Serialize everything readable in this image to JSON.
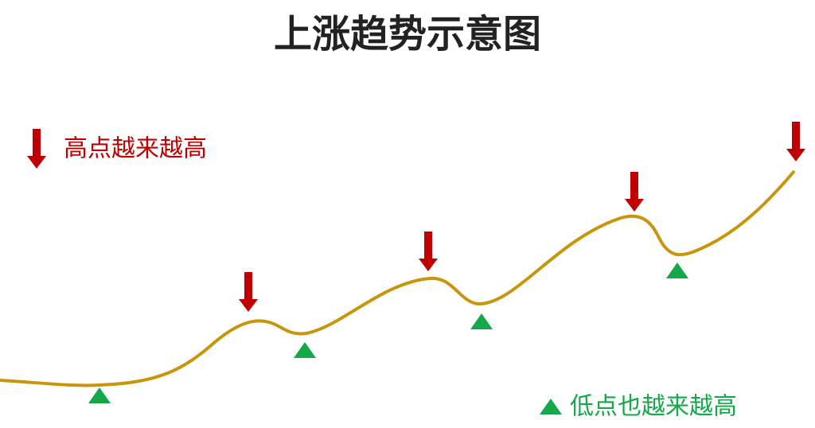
{
  "title": "上涨趋势示意图",
  "legend": {
    "highs": "高点越来越高",
    "lows": "低点也越来越高"
  }
}
